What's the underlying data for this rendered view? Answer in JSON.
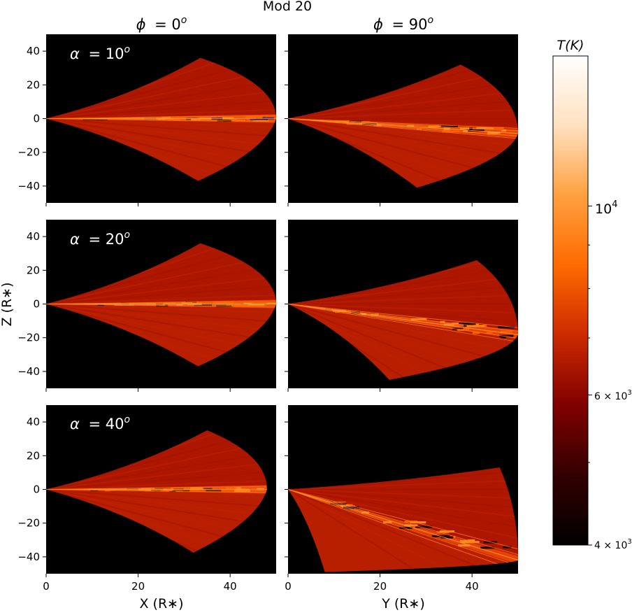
{
  "title": "Mod 20",
  "columns": [
    {
      "phi_sym": "ϕ",
      "phi_eq": "= 0",
      "phi_sup": "o"
    },
    {
      "phi_sym": "ϕ",
      "phi_eq": "= 90",
      "phi_sup": "o"
    }
  ],
  "rows": [
    {
      "alpha_sym": "α",
      "alpha_eq": "= 10",
      "alpha_sup": "o"
    },
    {
      "alpha_sym": "α",
      "alpha_eq": "= 20",
      "alpha_sup": "o"
    },
    {
      "alpha_sym": "α",
      "alpha_eq": "= 40",
      "alpha_sup": "o"
    }
  ],
  "xlabel_left": "X (R∗)",
  "xlabel_right": "Y (R∗)",
  "ylabel": "Z (R∗)",
  "colorbar": {
    "label": "T(K)",
    "tick_labels": [
      {
        "base": "10",
        "exp": "4"
      },
      {
        "base": "6 × 10",
        "exp": "3"
      },
      {
        "base": "4 × 10",
        "exp": "3"
      }
    ],
    "colormap": [
      "#000000",
      "#330000",
      "#800000",
      "#cc2a00",
      "#ff6a00",
      "#ffa040",
      "#ffe0c0",
      "#ffffff"
    ]
  },
  "chart_data": {
    "type": "heatmap",
    "title": "Mod 20",
    "panels_grid": [
      3,
      2
    ],
    "column_titles": [
      "ϕ = 0o",
      "ϕ = 90o"
    ],
    "row_labels": [
      "α = 10o",
      "α = 20o",
      "α = 40o"
    ],
    "xlim": [
      0,
      50
    ],
    "ylim": [
      -50,
      50
    ],
    "xticks": [
      0,
      20,
      40
    ],
    "yticks": [
      -40,
      -20,
      0,
      20,
      40
    ],
    "xlabels": [
      "X (R∗)",
      "Y (R∗)"
    ],
    "ylabel": "Z (R∗)",
    "colorbar_range_K": [
      4000,
      15000
    ],
    "colorbar_scale": "log",
    "colorbar_ticks": [
      4000,
      6000,
      10000
    ],
    "panels": [
      {
        "row": 0,
        "col": 0,
        "upper_peak": [
          33.5,
          36
        ],
        "lower_peak": [
          33,
          -37
        ],
        "edge_x": 50,
        "disk_tilt_deg": 0
      },
      {
        "row": 0,
        "col": 1,
        "upper_peak": [
          37.5,
          32
        ],
        "lower_peak": [
          28,
          -41
        ],
        "edge_x": 50,
        "disk_tilt_deg": -10
      },
      {
        "row": 1,
        "col": 0,
        "upper_peak": [
          33.5,
          36
        ],
        "lower_peak": [
          33,
          -37
        ],
        "edge_x": 50,
        "disk_tilt_deg": 0
      },
      {
        "row": 1,
        "col": 1,
        "upper_peak": [
          41,
          26
        ],
        "lower_peak": [
          22,
          -45
        ],
        "edge_x": 50,
        "disk_tilt_deg": -20
      },
      {
        "row": 2,
        "col": 0,
        "upper_peak": [
          35,
          35
        ],
        "lower_peak": [
          32,
          -37.5
        ],
        "edge_x": 48,
        "disk_tilt_deg": 0
      },
      {
        "row": 2,
        "col": 1,
        "upper_peak": [
          46,
          13
        ],
        "lower_peak": [
          8,
          -49
        ],
        "edge_x": 50,
        "disk_tilt_deg": -40
      }
    ]
  }
}
